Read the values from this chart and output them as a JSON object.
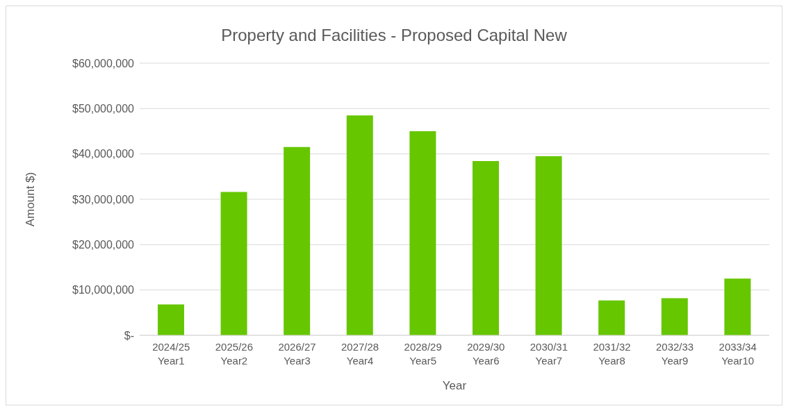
{
  "chart_data": {
    "type": "bar",
    "title": "Property and Facilities - Proposed Capital New",
    "xlabel": "Year",
    "ylabel": "Amount $)",
    "categories": [
      "2024/25\nYear1",
      "2025/26\nYear2",
      "2026/27\nYear3",
      "2027/28\nYear4",
      "2028/29\nYear5",
      "2029/30\nYear6",
      "2030/31\nYear7",
      "2031/32\nYear8",
      "2032/33\nYear9",
      "2033/34\nYear10"
    ],
    "values": [
      6800000,
      31600000,
      41500000,
      48500000,
      45000000,
      38400000,
      39500000,
      7700000,
      8200000,
      12500000
    ],
    "color": "#66c600",
    "ylim": [
      0,
      60000000
    ],
    "yticks": [
      {
        "value": 0,
        "label": "$-"
      },
      {
        "value": 10000000,
        "label": "$10,000,000"
      },
      {
        "value": 20000000,
        "label": "$20,000,000"
      },
      {
        "value": 30000000,
        "label": "$30,000,000"
      },
      {
        "value": 40000000,
        "label": "$40,000,000"
      },
      {
        "value": 50000000,
        "label": "$50,000,000"
      },
      {
        "value": 60000000,
        "label": "$60,000,000"
      }
    ],
    "grid": "y",
    "legend": false
  }
}
